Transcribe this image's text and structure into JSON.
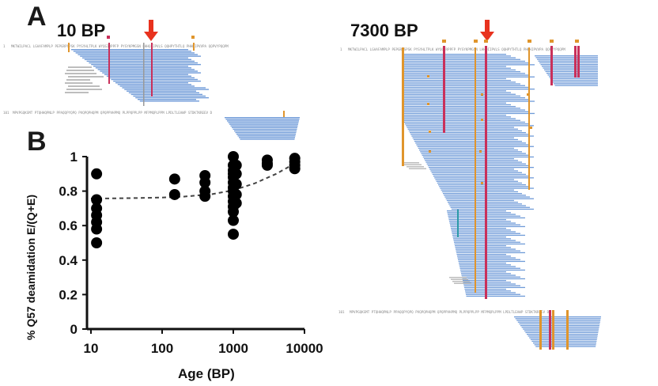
{
  "panels": {
    "a_letter": "A",
    "b_letter": "B",
    "age_left": "10 BP",
    "age_right": "7300 BP"
  },
  "colors": {
    "read": "#6f9bd8",
    "deamidation": "#c9305a",
    "marker": "#e0952c",
    "arrow": "#e8321e",
    "grey_read": "#bdbdbd"
  },
  "sequence_rows": {
    "left_top_start": "1",
    "left_top_text": "MKTWILPACL LGAAFAMPLP PEPGRPSPSK PYSYHLTPLK WYQGIRPPFP PYSYKPMGSN LHHQIIPVLS QQHPYTHTLQ PHHHIPVVPA QQPVYPQQPM",
    "left_bottom_start": "101",
    "left_bottom_text": "MPVPGQKSMT PTQHHQPNLP PPAQQPYQPQ PVQPQPHQPM QPQPPVHPMQ PLPPQPPLPP MFPMQPLPPM LPDLTLEAWP STDKTKREEV D",
    "right_top_start": "1",
    "right_top_text": "MKTWILPACL LGAAFAMPLP PEPGRPSPSK PYSYHLTPLK WYQGIRPPFP PYSYKPMGSN LHHQIIPVLS QQHPYTHTLQ PHHHIPVVPA QQPVYPQQPM",
    "right_bottom_start": "101",
    "right_bottom_text": "MPVPGQKSMT PTQHHQPNLP PPAQQPYQPQ PVQPQPHQPM QPQPPVHPMQ PLPPQPPLPP MFPMQPLPPM LPDLTLEAWP STDKTKREEV D"
  },
  "chart_data": {
    "type": "scatter",
    "xscale": "log",
    "xlim": [
      10,
      10000
    ],
    "ylim": [
      0,
      1
    ],
    "xticks": [
      "10",
      "100",
      "1000",
      "10000"
    ],
    "yticks": [
      "0",
      "0.2",
      "0.4",
      "0.6",
      "0.8",
      "1"
    ],
    "xlabel": "Age (BP)",
    "ylabel": "% Q57 deamidation  E/(Q+E)",
    "grid": false,
    "points": [
      {
        "x": 12,
        "y": 0.9
      },
      {
        "x": 12,
        "y": 0.75
      },
      {
        "x": 12,
        "y": 0.7
      },
      {
        "x": 12,
        "y": 0.66
      },
      {
        "x": 12,
        "y": 0.62
      },
      {
        "x": 12,
        "y": 0.58
      },
      {
        "x": 12,
        "y": 0.5
      },
      {
        "x": 150,
        "y": 0.87
      },
      {
        "x": 150,
        "y": 0.78
      },
      {
        "x": 400,
        "y": 0.89
      },
      {
        "x": 400,
        "y": 0.85
      },
      {
        "x": 400,
        "y": 0.8
      },
      {
        "x": 400,
        "y": 0.77
      },
      {
        "x": 1000,
        "y": 1.0
      },
      {
        "x": 1000,
        "y": 0.95
      },
      {
        "x": 1000,
        "y": 0.92
      },
      {
        "x": 1000,
        "y": 0.9
      },
      {
        "x": 1000,
        "y": 0.88
      },
      {
        "x": 1000,
        "y": 0.85
      },
      {
        "x": 1000,
        "y": 0.82
      },
      {
        "x": 1000,
        "y": 0.8
      },
      {
        "x": 1000,
        "y": 0.77
      },
      {
        "x": 1000,
        "y": 0.74
      },
      {
        "x": 1000,
        "y": 0.71
      },
      {
        "x": 1000,
        "y": 0.68
      },
      {
        "x": 1000,
        "y": 0.63
      },
      {
        "x": 1000,
        "y": 0.55
      },
      {
        "x": 1100,
        "y": 0.95
      },
      {
        "x": 1100,
        "y": 0.9
      },
      {
        "x": 1100,
        "y": 0.84
      },
      {
        "x": 1100,
        "y": 0.78
      },
      {
        "x": 1100,
        "y": 0.73
      },
      {
        "x": 3000,
        "y": 0.98
      },
      {
        "x": 3000,
        "y": 0.96
      },
      {
        "x": 3000,
        "y": 0.95
      },
      {
        "x": 7300,
        "y": 0.99
      },
      {
        "x": 7300,
        "y": 0.97
      },
      {
        "x": 7300,
        "y": 0.95
      },
      {
        "x": 7300,
        "y": 0.93
      }
    ],
    "fit_curve": [
      {
        "x": 10,
        "y": 0.757
      },
      {
        "x": 20,
        "y": 0.758
      },
      {
        "x": 50,
        "y": 0.76
      },
      {
        "x": 100,
        "y": 0.763
      },
      {
        "x": 200,
        "y": 0.768
      },
      {
        "x": 500,
        "y": 0.782
      },
      {
        "x": 1000,
        "y": 0.805
      },
      {
        "x": 2000,
        "y": 0.845
      },
      {
        "x": 4000,
        "y": 0.9
      },
      {
        "x": 7300,
        "y": 0.96
      }
    ]
  }
}
